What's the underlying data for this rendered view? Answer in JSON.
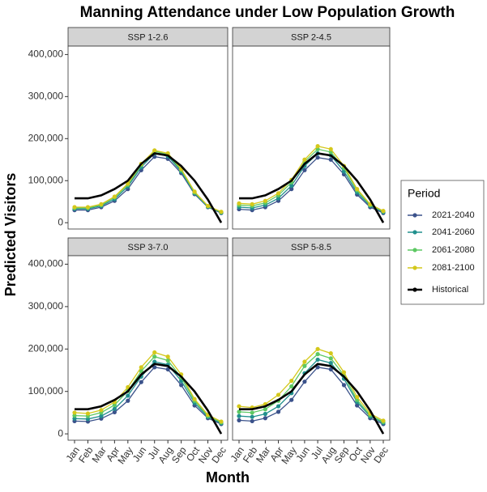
{
  "title": "Manning Attendance under Low Population Growth",
  "x_label": "Month",
  "y_label": "Predicted Visitors",
  "legend_title": "Period",
  "legend": "right",
  "chart_data": [
    {
      "type": "line",
      "title": "SSP 1-2.6",
      "categories": [
        "Jan",
        "Feb",
        "Mar",
        "Apr",
        "May",
        "Jun",
        "Jul",
        "Aug",
        "Sep",
        "Oct",
        "Nov",
        "Dec"
      ],
      "ylim": [
        -15000,
        420000
      ],
      "yticks": [
        0,
        {
          "value": 100000,
          "label": "100,000"
        },
        {
          "value": 200000,
          "label": "200,000"
        },
        {
          "value": 300000,
          "label": "300,000"
        },
        {
          "value": 400000,
          "label": "400,000"
        }
      ],
      "series": [
        {
          "name": "2021-2040",
          "color": "#3b528b",
          "markers": true,
          "values": [
            30000,
            30000,
            37000,
            52000,
            80000,
            125000,
            157000,
            152000,
            118000,
            68000,
            37000,
            23000
          ]
        },
        {
          "name": "2041-2060",
          "color": "#21908d",
          "markers": true,
          "values": [
            33000,
            33000,
            40000,
            56000,
            86000,
            132000,
            165000,
            158000,
            122000,
            70000,
            38000,
            24000
          ]
        },
        {
          "name": "2061-2080",
          "color": "#5dc863",
          "markers": true,
          "values": [
            35000,
            35000,
            42000,
            60000,
            90000,
            137000,
            170000,
            162000,
            125000,
            72000,
            39000,
            25000
          ]
        },
        {
          "name": "2081-2100",
          "color": "#d4c81b",
          "markers": true,
          "values": [
            37000,
            37000,
            44000,
            62000,
            93000,
            140000,
            172000,
            165000,
            128000,
            74000,
            40000,
            26000
          ]
        },
        {
          "name": "Historical",
          "color": "#000000",
          "markers": false,
          "values": [
            58000,
            58000,
            65000,
            80000,
            100000,
            140000,
            165000,
            160000,
            135000,
            100000,
            55000,
            0
          ]
        }
      ]
    },
    {
      "type": "line",
      "title": "SSP 2-4.5",
      "categories": [
        "Jan",
        "Feb",
        "Mar",
        "Apr",
        "May",
        "Jun",
        "Jul",
        "Aug",
        "Sep",
        "Oct",
        "Nov",
        "Dec"
      ],
      "ylim": [
        -15000,
        420000
      ],
      "yticks": [
        0,
        {
          "value": 100000,
          "label": "100,000"
        },
        {
          "value": 200000,
          "label": "200,000"
        },
        {
          "value": 300000,
          "label": "300,000"
        },
        {
          "value": 400000,
          "label": "400,000"
        }
      ],
      "series": [
        {
          "name": "2021-2040",
          "color": "#3b528b",
          "markers": true,
          "values": [
            32000,
            30000,
            37000,
            52000,
            80000,
            125000,
            155000,
            150000,
            115000,
            67000,
            37000,
            23000
          ]
        },
        {
          "name": "2041-2060",
          "color": "#21908d",
          "markers": true,
          "values": [
            37000,
            35000,
            42000,
            58000,
            88000,
            135000,
            165000,
            160000,
            122000,
            72000,
            40000,
            25000
          ]
        },
        {
          "name": "2061-2080",
          "color": "#5dc863",
          "markers": true,
          "values": [
            42000,
            40000,
            47000,
            65000,
            96000,
            145000,
            175000,
            168000,
            130000,
            77000,
            42000,
            27000
          ]
        },
        {
          "name": "2081-2100",
          "color": "#d4c81b",
          "markers": true,
          "values": [
            46000,
            44000,
            52000,
            70000,
            102000,
            150000,
            182000,
            175000,
            135000,
            80000,
            44000,
            28000
          ]
        },
        {
          "name": "Historical",
          "color": "#000000",
          "markers": false,
          "values": [
            58000,
            58000,
            65000,
            80000,
            100000,
            140000,
            165000,
            160000,
            135000,
            100000,
            55000,
            0
          ]
        }
      ]
    },
    {
      "type": "line",
      "title": "SSP 3-7.0",
      "categories": [
        "Jan",
        "Feb",
        "Mar",
        "Apr",
        "May",
        "Jun",
        "Jul",
        "Aug",
        "Sep",
        "Oct",
        "Nov",
        "Dec"
      ],
      "ylim": [
        -15000,
        420000
      ],
      "yticks": [
        0,
        {
          "value": 100000,
          "label": "100,000"
        },
        {
          "value": 200000,
          "label": "200,000"
        },
        {
          "value": 300000,
          "label": "300,000"
        },
        {
          "value": 400000,
          "label": "400,000"
        }
      ],
      "series": [
        {
          "name": "2021-2040",
          "color": "#3b528b",
          "markers": true,
          "values": [
            30000,
            29000,
            36000,
            51000,
            78000,
            122000,
            157000,
            152000,
            115000,
            67000,
            37000,
            23000
          ]
        },
        {
          "name": "2041-2060",
          "color": "#21908d",
          "markers": true,
          "values": [
            36000,
            35000,
            42000,
            59000,
            90000,
            135000,
            170000,
            163000,
            125000,
            73000,
            40000,
            25000
          ]
        },
        {
          "name": "2061-2080",
          "color": "#5dc863",
          "markers": true,
          "values": [
            43000,
            42000,
            50000,
            68000,
            101000,
            148000,
            182000,
            173000,
            133000,
            78000,
            42000,
            27000
          ]
        },
        {
          "name": "2081-2100",
          "color": "#d4c81b",
          "markers": true,
          "values": [
            50000,
            48000,
            56000,
            75000,
            110000,
            157000,
            192000,
            182000,
            140000,
            82000,
            45000,
            29000
          ]
        },
        {
          "name": "Historical",
          "color": "#000000",
          "markers": false,
          "values": [
            58000,
            58000,
            65000,
            80000,
            100000,
            140000,
            165000,
            160000,
            135000,
            100000,
            55000,
            0
          ]
        }
      ]
    },
    {
      "type": "line",
      "title": "SSP 5-8.5",
      "categories": [
        "Jan",
        "Feb",
        "Mar",
        "Apr",
        "May",
        "Jun",
        "Jul",
        "Aug",
        "Sep",
        "Oct",
        "Nov",
        "Dec"
      ],
      "ylim": [
        -15000,
        420000
      ],
      "yticks": [
        0,
        {
          "value": 100000,
          "label": "100,000"
        },
        {
          "value": 200000,
          "label": "200,000"
        },
        {
          "value": 300000,
          "label": "300,000"
        },
        {
          "value": 400000,
          "label": "400,000"
        }
      ],
      "series": [
        {
          "name": "2021-2040",
          "color": "#3b528b",
          "markers": true,
          "values": [
            32000,
            30000,
            37000,
            52000,
            80000,
            123000,
            157000,
            152000,
            115000,
            67000,
            37000,
            23000
          ]
        },
        {
          "name": "2041-2060",
          "color": "#21908d",
          "markers": true,
          "values": [
            42000,
            40000,
            47000,
            65000,
            96000,
            143000,
            175000,
            167000,
            130000,
            75000,
            41000,
            26000
          ]
        },
        {
          "name": "2061-2080",
          "color": "#5dc863",
          "markers": true,
          "values": [
            52000,
            50000,
            58000,
            78000,
            112000,
            160000,
            188000,
            178000,
            138000,
            80000,
            44000,
            28000
          ]
        },
        {
          "name": "2081-2100",
          "color": "#d4c81b",
          "markers": true,
          "values": [
            65000,
            62000,
            70000,
            92000,
            125000,
            170000,
            200000,
            190000,
            145000,
            87000,
            48000,
            31000
          ]
        },
        {
          "name": "Historical",
          "color": "#000000",
          "markers": false,
          "values": [
            58000,
            58000,
            65000,
            80000,
            100000,
            140000,
            165000,
            160000,
            135000,
            100000,
            55000,
            0
          ]
        }
      ]
    }
  ]
}
